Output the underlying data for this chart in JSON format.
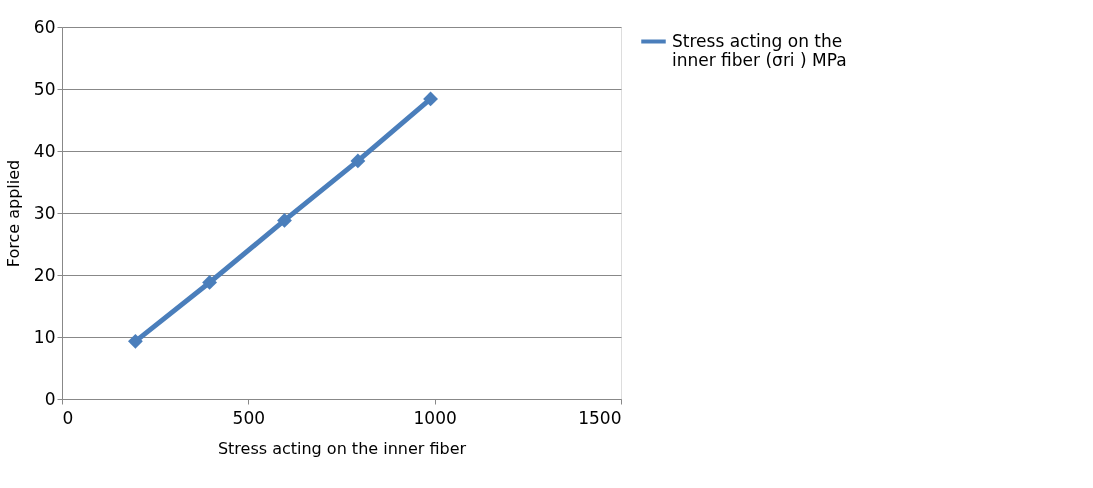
{
  "chart_data": {
    "type": "line",
    "xlabel": "Stress acting on the inner fiber",
    "ylabel": "Force applied",
    "x": [
      197,
      396,
      597,
      794,
      989
    ],
    "series": [
      {
        "name": "Stress acting on the inner fiber   (σri ) MPa",
        "color": "#4a7ebb",
        "values": [
          9.3,
          18.8,
          28.8,
          38.4,
          48.4
        ]
      }
    ],
    "xlim": [
      0,
      1500
    ],
    "xticks": [
      0,
      500,
      1000,
      1500
    ],
    "ylim": [
      0,
      60
    ],
    "yticks": [
      0,
      10,
      20,
      30,
      40,
      50,
      60
    ],
    "grid": "y",
    "legend": "right",
    "marker": "diamond",
    "line_style": "solid"
  }
}
